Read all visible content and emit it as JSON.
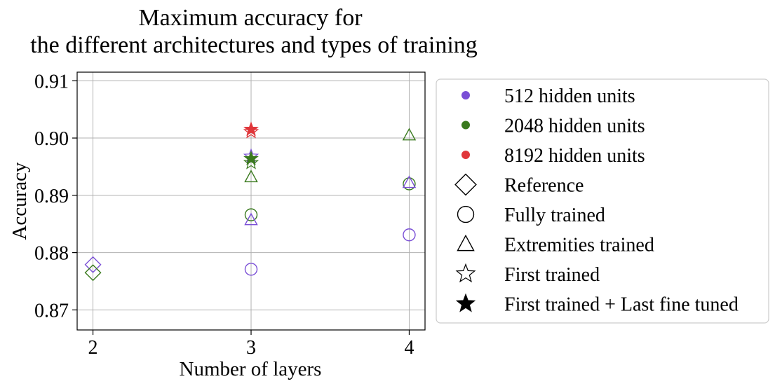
{
  "chart_data": {
    "type": "scatter",
    "title_lines": [
      "Maximum accuracy for",
      "the different architectures and types of training"
    ],
    "xlabel": "Number of layers",
    "ylabel": "Accuracy",
    "xlim": [
      1.9,
      4.1
    ],
    "ylim": [
      0.8665,
      0.9115
    ],
    "x_ticks": [
      2,
      3,
      4
    ],
    "x_tick_labels": [
      "2",
      "3",
      "4"
    ],
    "y_ticks": [
      0.87,
      0.88,
      0.89,
      0.9,
      0.91
    ],
    "y_tick_labels": [
      "0.87",
      "0.88",
      "0.89",
      "0.90",
      "0.91"
    ],
    "grid": true,
    "legend_position": "outside right",
    "colors": {
      "512 hidden units": "#7a4fd6",
      "2048 hidden units": "#3a7a1e",
      "8192 hidden units": "#e0363a"
    },
    "legend": [
      {
        "label": "512 hidden units",
        "marker": "dot",
        "color": "#7a4fd6"
      },
      {
        "label": "2048 hidden units",
        "marker": "dot",
        "color": "#3a7a1e"
      },
      {
        "label": "8192 hidden units",
        "marker": "dot",
        "color": "#e0363a"
      },
      {
        "label": "Reference",
        "marker": "diamond",
        "color": "#000000"
      },
      {
        "label": "Fully trained",
        "marker": "circle",
        "color": "#000000"
      },
      {
        "label": "Extremities trained",
        "marker": "triangle",
        "color": "#000000"
      },
      {
        "label": "First trained",
        "marker": "star-open",
        "color": "#000000"
      },
      {
        "label": "First trained + Last fine tuned",
        "marker": "star-filled",
        "color": "#000000"
      }
    ],
    "points": [
      {
        "series": "512 hidden units",
        "marker": "diamond",
        "x": 2,
        "y": 0.8779
      },
      {
        "series": "2048 hidden units",
        "marker": "diamond",
        "x": 2,
        "y": 0.8765
      },
      {
        "series": "512 hidden units",
        "marker": "circle",
        "x": 3,
        "y": 0.8771
      },
      {
        "series": "2048 hidden units",
        "marker": "circle",
        "x": 3,
        "y": 0.8866
      },
      {
        "series": "512 hidden units",
        "marker": "triangle",
        "x": 3,
        "y": 0.8857
      },
      {
        "series": "2048 hidden units",
        "marker": "triangle",
        "x": 3,
        "y": 0.8932
      },
      {
        "series": "512 hidden units",
        "marker": "star-open",
        "x": 3,
        "y": 0.8968
      },
      {
        "series": "2048 hidden units",
        "marker": "star-open",
        "x": 3,
        "y": 0.8957
      },
      {
        "series": "8192 hidden units",
        "marker": "star-open",
        "x": 3,
        "y": 0.9011
      },
      {
        "series": "2048 hidden units",
        "marker": "star-filled",
        "x": 3,
        "y": 0.8964
      },
      {
        "series": "8192 hidden units",
        "marker": "star-filled",
        "x": 3,
        "y": 0.9015
      },
      {
        "series": "512 hidden units",
        "marker": "circle",
        "x": 4,
        "y": 0.8831
      },
      {
        "series": "2048 hidden units",
        "marker": "circle",
        "x": 4,
        "y": 0.892
      },
      {
        "series": "512 hidden units",
        "marker": "triangle",
        "x": 4,
        "y": 0.8922
      },
      {
        "series": "2048 hidden units",
        "marker": "triangle",
        "x": 4,
        "y": 0.9005
      }
    ]
  }
}
